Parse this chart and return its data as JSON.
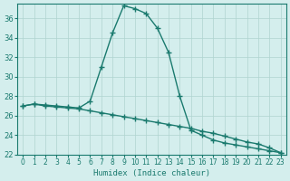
{
  "curve1_x": [
    0,
    1,
    2,
    3,
    4,
    5,
    6,
    7,
    8,
    9,
    10,
    11,
    12,
    13,
    14,
    15,
    16,
    17,
    18,
    19,
    20,
    21,
    22,
    23
  ],
  "curve1_y": [
    27.0,
    27.2,
    27.1,
    27.0,
    26.9,
    26.8,
    27.5,
    31.0,
    34.5,
    37.3,
    37.0,
    36.5,
    35.0,
    32.5,
    28.0,
    24.5,
    24.0,
    23.5,
    23.2,
    23.0,
    22.8,
    22.6,
    22.4,
    22.2
  ],
  "curve2_x": [
    0,
    1,
    2,
    3,
    4,
    5,
    6,
    7,
    8,
    9,
    10,
    11,
    12,
    13,
    14,
    15,
    16,
    17,
    18,
    19,
    20,
    21,
    22,
    23
  ],
  "curve2_y": [
    27.0,
    27.2,
    27.0,
    26.9,
    26.8,
    26.7,
    26.5,
    26.3,
    26.1,
    25.9,
    25.7,
    25.5,
    25.3,
    25.1,
    24.9,
    24.7,
    24.4,
    24.2,
    23.9,
    23.6,
    23.3,
    23.1,
    22.7,
    22.2
  ],
  "line_color": "#1a7a6e",
  "bg_color": "#d4eeed",
  "grid_color": "#afd4d0",
  "xlim": [
    -0.5,
    23.5
  ],
  "ylim": [
    22,
    37.5
  ],
  "xlabel": "Humidex (Indice chaleur)",
  "xticks": [
    0,
    1,
    2,
    3,
    4,
    5,
    6,
    7,
    8,
    9,
    10,
    11,
    12,
    13,
    14,
    15,
    16,
    17,
    18,
    19,
    20,
    21,
    22,
    23
  ],
  "yticks": [
    22,
    24,
    26,
    28,
    30,
    32,
    34,
    36
  ],
  "marker": "+"
}
